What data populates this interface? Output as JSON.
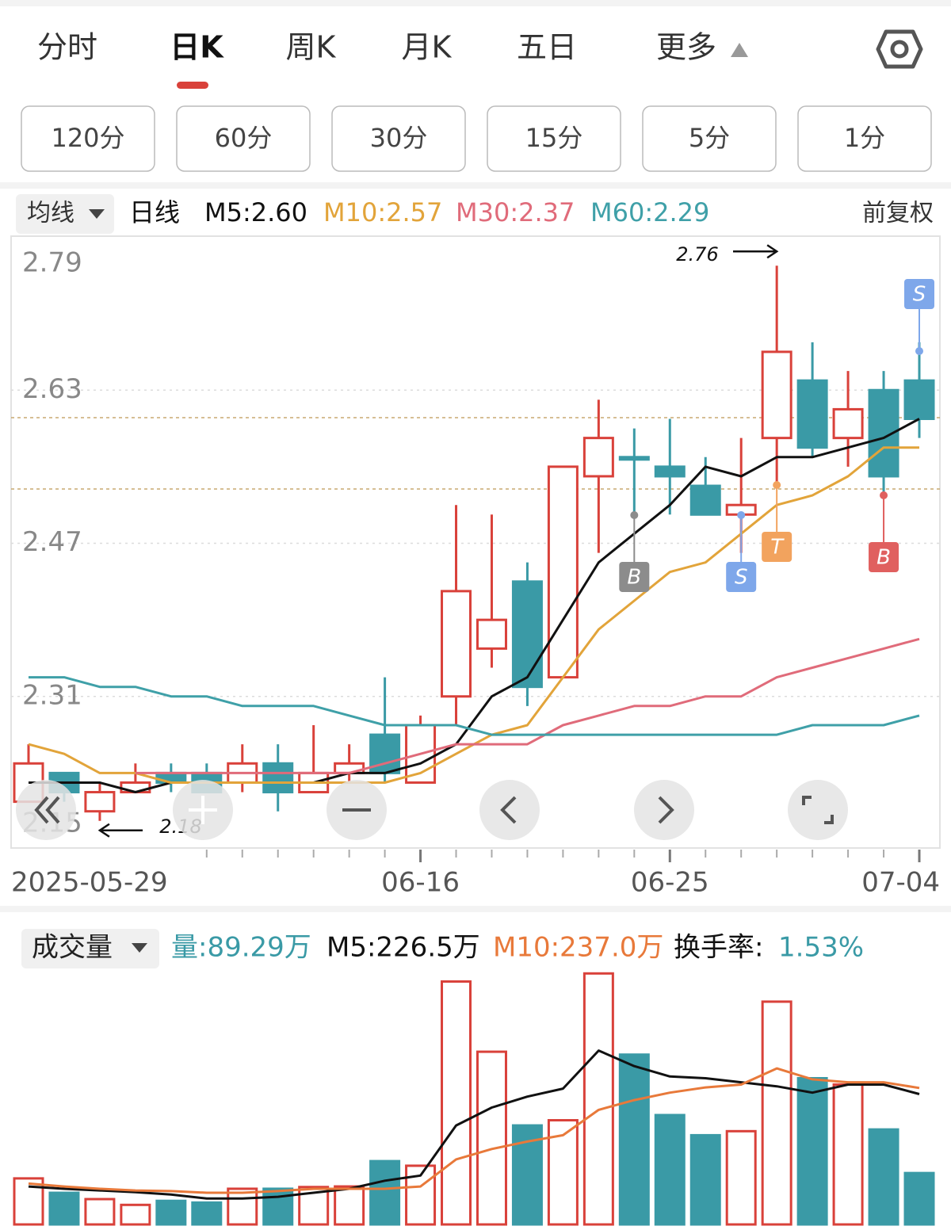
{
  "tabs": [
    "分时",
    "日K",
    "周K",
    "月K",
    "五日",
    "更多"
  ],
  "intervals": [
    "120分",
    "60分",
    "30分",
    "15分",
    "5分",
    "1分"
  ],
  "legend": {
    "ma_type": "均线",
    "period": "日线",
    "items": [
      {
        "text": "M5:2.60",
        "color": "#111111"
      },
      {
        "text": "M10:2.57",
        "color": "#e2a43a"
      },
      {
        "text": "M30:2.37",
        "color": "#e06b7a"
      },
      {
        "text": "M60:2.29",
        "color": "#3fa0a8"
      }
    ],
    "adjust": "前复权"
  },
  "volume_legend": {
    "title": "成交量",
    "items": [
      {
        "text": "量:89.29万",
        "color": "#3a9aa6"
      },
      {
        "text": "M5:226.5万",
        "color": "#111111"
      },
      {
        "text": "M10:237.0万",
        "color": "#e8793a"
      },
      {
        "text": "换手率:",
        "color": "#111111"
      },
      {
        "text": "1.53%",
        "color": "#3a9aa6"
      }
    ]
  },
  "chart_data": [
    {
      "type": "candlestick",
      "categories": [
        "2025-05-29",
        null,
        null,
        null,
        null,
        null,
        null,
        null,
        null,
        null,
        null,
        "06-16",
        null,
        null,
        null,
        null,
        null,
        null,
        "06-25",
        null,
        null,
        null,
        null,
        null,
        null,
        "07-04"
      ],
      "open": [
        2.2,
        2.23,
        2.19,
        2.21,
        2.23,
        2.23,
        2.22,
        2.24,
        2.21,
        2.23,
        2.27,
        2.22,
        2.31,
        2.36,
        2.43,
        2.33,
        2.54,
        2.56,
        2.55,
        2.53,
        2.5,
        2.58,
        2.64,
        2.58,
        2.63,
        2.64
      ],
      "close": [
        2.24,
        2.21,
        2.21,
        2.22,
        2.22,
        2.21,
        2.24,
        2.21,
        2.23,
        2.24,
        2.23,
        2.28,
        2.42,
        2.39,
        2.32,
        2.55,
        2.58,
        2.56,
        2.54,
        2.5,
        2.51,
        2.67,
        2.57,
        2.61,
        2.54,
        2.6
      ],
      "high": [
        2.26,
        2.23,
        2.22,
        2.24,
        2.24,
        2.24,
        2.26,
        2.26,
        2.28,
        2.26,
        2.33,
        2.29,
        2.51,
        2.5,
        2.45,
        2.55,
        2.62,
        2.59,
        2.6,
        2.56,
        2.58,
        2.76,
        2.68,
        2.65,
        2.65,
        2.68
      ],
      "low": [
        2.2,
        2.2,
        2.18,
        2.21,
        2.21,
        2.21,
        2.21,
        2.19,
        2.21,
        2.22,
        2.22,
        2.22,
        2.28,
        2.34,
        2.3,
        2.33,
        2.46,
        2.5,
        2.5,
        2.5,
        2.46,
        2.53,
        2.56,
        2.55,
        2.52,
        2.58
      ],
      "up_color": "#d9413a",
      "down_color": "#3a9aa6",
      "ylim": [
        2.15,
        2.79
      ],
      "yticks": [
        2.79,
        2.63,
        2.47,
        2.31,
        2.15
      ],
      "grid": true,
      "series": [
        {
          "color": "#111111",
          "values": [
            2.22,
            2.22,
            2.22,
            2.21,
            2.22,
            2.22,
            2.22,
            2.22,
            2.22,
            2.23,
            2.23,
            2.24,
            2.26,
            2.31,
            2.33,
            2.39,
            2.45,
            2.48,
            2.51,
            2.55,
            2.54,
            2.56,
            2.56,
            2.57,
            2.58,
            2.6
          ]
        },
        {
          "color": "#e2a43a",
          "values": [
            2.26,
            2.25,
            2.23,
            2.23,
            2.22,
            2.22,
            2.22,
            2.22,
            2.22,
            2.22,
            2.22,
            2.23,
            2.25,
            2.27,
            2.28,
            2.33,
            2.38,
            2.41,
            2.44,
            2.45,
            2.48,
            2.51,
            2.52,
            2.54,
            2.57,
            2.57
          ]
        },
        {
          "color": "#e06b7a",
          "values": [
            null,
            null,
            null,
            2.23,
            2.23,
            2.23,
            2.23,
            2.23,
            2.23,
            2.23,
            2.24,
            2.25,
            2.26,
            2.26,
            2.26,
            2.28,
            2.29,
            2.3,
            2.3,
            2.31,
            2.31,
            2.33,
            2.34,
            2.35,
            2.36,
            2.37
          ]
        },
        {
          "color": "#3fa0a8",
          "values": [
            2.33,
            2.33,
            2.32,
            2.32,
            2.31,
            2.31,
            2.3,
            2.3,
            2.3,
            2.29,
            2.28,
            2.28,
            2.28,
            2.27,
            2.27,
            2.27,
            2.27,
            2.27,
            2.27,
            2.27,
            2.27,
            2.27,
            2.28,
            2.28,
            2.28,
            2.29
          ]
        }
      ],
      "annotations": [
        {
          "value": 2.76
        },
        {
          "value": 2.18
        }
      ],
      "signals": [
        {
          "label": "B",
          "color": "#8c8c8c"
        },
        {
          "label": "S",
          "color": "#7ea7ea"
        },
        {
          "label": "T",
          "color": "#f2a35e"
        },
        {
          "label": "B",
          "color": "#e0605f"
        },
        {
          "label": "S",
          "color": "#7ea7ea"
        }
      ]
    },
    {
      "type": "bar",
      "values": [
        80,
        55,
        44,
        34,
        41,
        38,
        62,
        62,
        65,
        66,
        110,
        102,
        422,
        300,
        172,
        181,
        436,
        295,
        190,
        155,
        162,
        387,
        254,
        243,
        165,
        89.29
      ],
      "ylim": [
        0,
        530
      ],
      "series": [
        {
          "color": "#111111",
          "values": [
            66,
            62,
            59,
            56,
            52,
            45,
            45,
            48,
            55,
            62,
            76,
            85,
            172,
            203,
            222,
            236,
            302,
            275,
            257,
            254,
            247,
            240,
            229,
            243,
            243,
            226.5
          ]
        },
        {
          "color": "#e8793a",
          "values": [
            71,
            66,
            62,
            59,
            58,
            55,
            55,
            58,
            62,
            62,
            62,
            66,
            113,
            131,
            144,
            155,
            199,
            216,
            229,
            238,
            243,
            271,
            252,
            247,
            247,
            237.0
          ]
        }
      ]
    }
  ]
}
